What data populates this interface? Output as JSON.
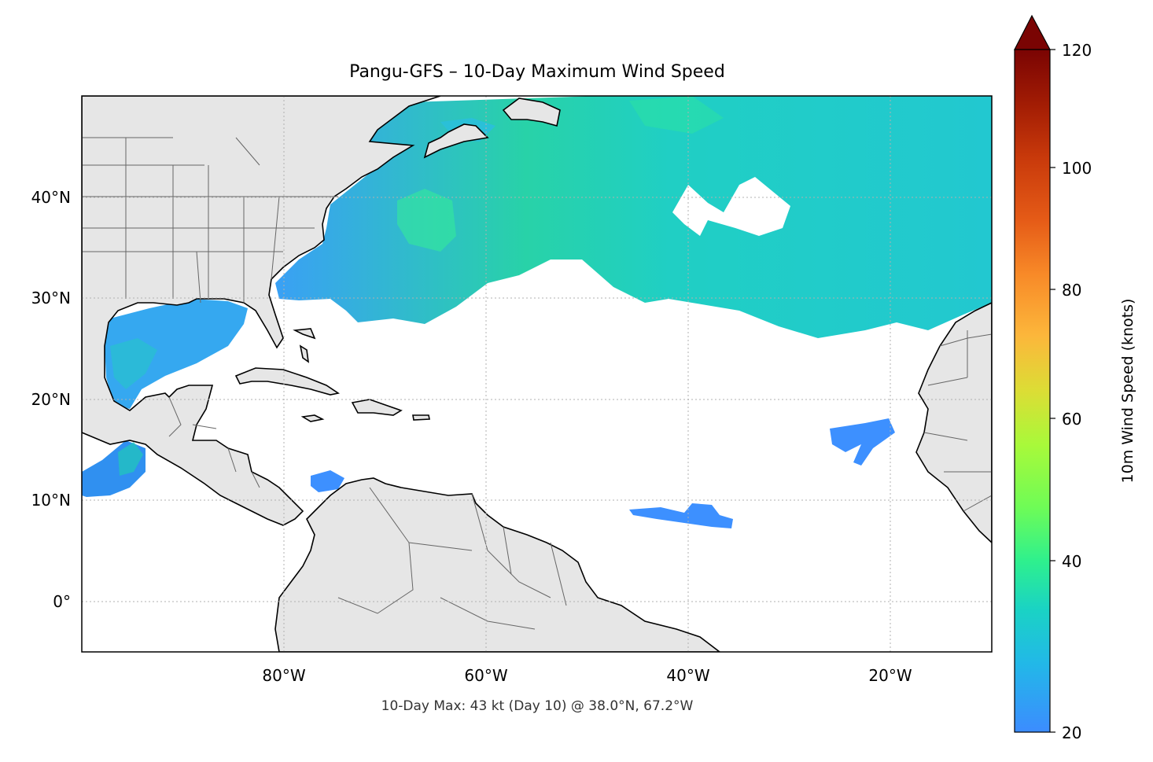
{
  "title": "Pangu-GFS – 10-Day Maximum Wind Speed",
  "footer": "10-Day Max: 43 kt (Day 10) @ 38.0°N, 67.2°W",
  "map": {
    "lon_ticks": [
      "80°W",
      "60°W",
      "40°W",
      "20°W"
    ],
    "lat_ticks": [
      "40°N",
      "30°N",
      "20°N",
      "10°N",
      "0°"
    ],
    "extent": {
      "lon_min": -100,
      "lon_max": -10,
      "lat_min": -5,
      "lat_max": 50
    }
  },
  "colorbar": {
    "label": "10m Wind Speed (knots)",
    "ticks": [
      "20",
      "40",
      "60",
      "80",
      "100",
      "120"
    ],
    "range": [
      20,
      120
    ],
    "extend": "max",
    "colormap": "turbo"
  },
  "colors": {
    "land": "#e6e6e6",
    "coast": "#000000",
    "borders": "#666666",
    "grid": "#b0b0b0",
    "wind_low": "#3d90ff",
    "wind_mid": "#1ec8c8",
    "wind_high": "#3cf08c"
  }
}
